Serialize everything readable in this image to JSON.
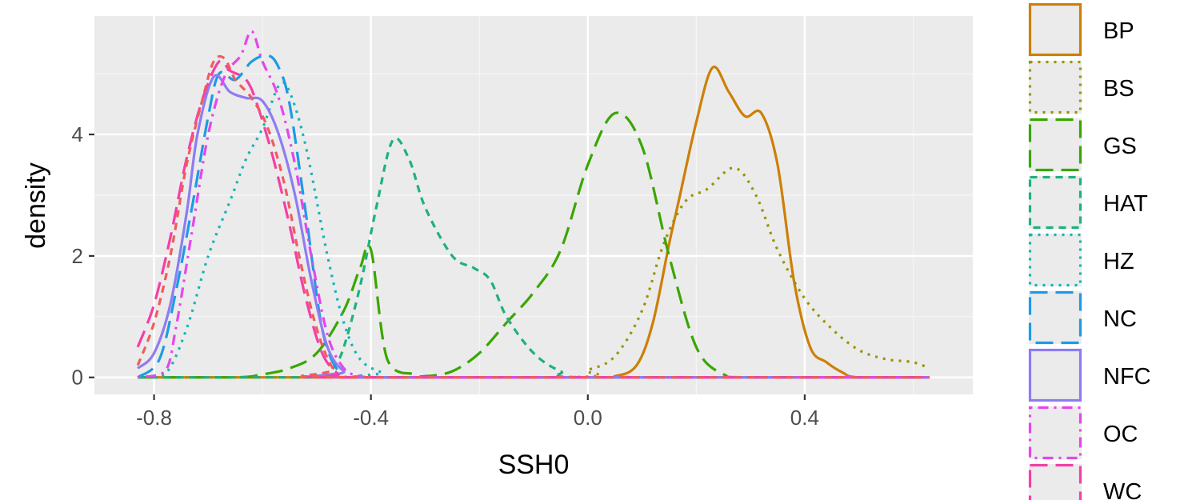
{
  "chart_data": {
    "type": "line",
    "chart_kind": "density",
    "title": "",
    "xlabel": "SSH0",
    "ylabel": "density",
    "xlim": [
      -0.91,
      0.71
    ],
    "ylim": [
      -0.28,
      5.95
    ],
    "x_ticks": [
      -0.8,
      -0.4,
      0.0,
      0.4
    ],
    "x_tick_labels": [
      "-0.8",
      "-0.4",
      "0.0",
      "0.4"
    ],
    "y_ticks": [
      0,
      2,
      4
    ],
    "y_tick_labels": [
      "0",
      "2",
      "4"
    ],
    "grid": true,
    "legend_position": "right",
    "series": [
      {
        "name": "BP",
        "color": "#CD7F06",
        "dash": "solid",
        "points": [
          [
            -0.83,
            0
          ],
          [
            0.0,
            0
          ],
          [
            0.05,
            0.02
          ],
          [
            0.09,
            0.2
          ],
          [
            0.12,
            0.9
          ],
          [
            0.15,
            2.2
          ],
          [
            0.17,
            3.0
          ],
          [
            0.2,
            4.2
          ],
          [
            0.23,
            5.1
          ],
          [
            0.26,
            4.7
          ],
          [
            0.29,
            4.3
          ],
          [
            0.32,
            4.35
          ],
          [
            0.35,
            3.5
          ],
          [
            0.38,
            1.6
          ],
          [
            0.41,
            0.5
          ],
          [
            0.44,
            0.25
          ],
          [
            0.47,
            0.08
          ],
          [
            0.5,
            0
          ],
          [
            0.63,
            0
          ]
        ]
      },
      {
        "name": "BS",
        "color": "#999300",
        "dash": "dotted",
        "points": [
          [
            -0.83,
            0
          ],
          [
            -0.05,
            0
          ],
          [
            0.0,
            0.12
          ],
          [
            0.05,
            0.35
          ],
          [
            0.1,
            1.1
          ],
          [
            0.14,
            2.2
          ],
          [
            0.18,
            2.9
          ],
          [
            0.22,
            3.1
          ],
          [
            0.27,
            3.45
          ],
          [
            0.31,
            3.0
          ],
          [
            0.35,
            2.1
          ],
          [
            0.4,
            1.3
          ],
          [
            0.45,
            0.8
          ],
          [
            0.5,
            0.45
          ],
          [
            0.55,
            0.3
          ],
          [
            0.6,
            0.25
          ],
          [
            0.63,
            0.15
          ]
        ]
      },
      {
        "name": "GS",
        "color": "#3AA600",
        "dash": "longdash",
        "points": [
          [
            -0.83,
            0
          ],
          [
            -0.65,
            0
          ],
          [
            -0.6,
            0.05
          ],
          [
            -0.55,
            0.15
          ],
          [
            -0.5,
            0.4
          ],
          [
            -0.45,
            1.1
          ],
          [
            -0.42,
            1.8
          ],
          [
            -0.4,
            2.1
          ],
          [
            -0.37,
            0.3
          ],
          [
            -0.32,
            0.05
          ],
          [
            -0.3,
            0.02
          ],
          [
            -0.25,
            0.1
          ],
          [
            -0.2,
            0.4
          ],
          [
            -0.15,
            0.9
          ],
          [
            -0.1,
            1.4
          ],
          [
            -0.05,
            2.1
          ],
          [
            0.0,
            3.5
          ],
          [
            0.05,
            4.35
          ],
          [
            0.1,
            3.8
          ],
          [
            0.15,
            2.0
          ],
          [
            0.2,
            0.5
          ],
          [
            0.25,
            0.05
          ],
          [
            0.3,
            0
          ],
          [
            0.63,
            0
          ]
        ]
      },
      {
        "name": "HAT",
        "color": "#1FB17D",
        "dash": "dashed",
        "points": [
          [
            -0.83,
            0
          ],
          [
            -0.5,
            0
          ],
          [
            -0.47,
            0.15
          ],
          [
            -0.45,
            0.5
          ],
          [
            -0.42,
            1.5
          ],
          [
            -0.39,
            2.8
          ],
          [
            -0.36,
            3.9
          ],
          [
            -0.33,
            3.6
          ],
          [
            -0.3,
            2.8
          ],
          [
            -0.25,
            2.0
          ],
          [
            -0.21,
            1.8
          ],
          [
            -0.18,
            1.6
          ],
          [
            -0.15,
            1.0
          ],
          [
            -0.1,
            0.4
          ],
          [
            -0.05,
            0.1
          ],
          [
            0.0,
            0
          ],
          [
            0.63,
            0
          ]
        ]
      },
      {
        "name": "HZ",
        "color": "#12B4B8",
        "dash": "dotted",
        "points": [
          [
            -0.83,
            0
          ],
          [
            -0.78,
            0.05
          ],
          [
            -0.74,
            0.8
          ],
          [
            -0.7,
            2.0
          ],
          [
            -0.66,
            2.9
          ],
          [
            -0.63,
            3.6
          ],
          [
            -0.6,
            4.1
          ],
          [
            -0.57,
            4.8
          ],
          [
            -0.55,
            4.7
          ],
          [
            -0.52,
            3.8
          ],
          [
            -0.48,
            2.0
          ],
          [
            -0.45,
            0.9
          ],
          [
            -0.42,
            0.3
          ],
          [
            -0.38,
            0.08
          ],
          [
            -0.35,
            0
          ],
          [
            0.63,
            0
          ]
        ]
      },
      {
        "name": "NC",
        "color": "#1E9AE6",
        "dash": "longdash",
        "points": [
          [
            -0.83,
            0
          ],
          [
            -0.79,
            0.3
          ],
          [
            -0.76,
            1.4
          ],
          [
            -0.73,
            2.8
          ],
          [
            -0.7,
            4.3
          ],
          [
            -0.68,
            5.0
          ],
          [
            -0.65,
            4.9
          ],
          [
            -0.62,
            5.2
          ],
          [
            -0.59,
            5.3
          ],
          [
            -0.57,
            5.1
          ],
          [
            -0.55,
            4.5
          ],
          [
            -0.52,
            2.7
          ],
          [
            -0.49,
            0.8
          ],
          [
            -0.46,
            0.1
          ],
          [
            -0.43,
            0
          ],
          [
            0.63,
            0
          ]
        ]
      },
      {
        "name": "NFC",
        "color": "#8E7CF2",
        "dash": "solid",
        "points": [
          [
            -0.83,
            0.15
          ],
          [
            -0.8,
            0.4
          ],
          [
            -0.77,
            1.2
          ],
          [
            -0.74,
            2.7
          ],
          [
            -0.72,
            4.0
          ],
          [
            -0.69,
            4.95
          ],
          [
            -0.66,
            4.7
          ],
          [
            -0.63,
            4.6
          ],
          [
            -0.6,
            4.55
          ],
          [
            -0.57,
            4.0
          ],
          [
            -0.54,
            3.0
          ],
          [
            -0.51,
            1.6
          ],
          [
            -0.48,
            0.5
          ],
          [
            -0.45,
            0.1
          ],
          [
            -0.42,
            0
          ],
          [
            0.63,
            0
          ]
        ]
      },
      {
        "name": "OC",
        "color": "#E447EB",
        "dash": "dotdash",
        "points": [
          [
            -0.83,
            0
          ],
          [
            -0.78,
            0.1
          ],
          [
            -0.76,
            0.8
          ],
          [
            -0.73,
            2.4
          ],
          [
            -0.7,
            4.0
          ],
          [
            -0.67,
            4.95
          ],
          [
            -0.64,
            5.3
          ],
          [
            -0.62,
            5.7
          ],
          [
            -0.6,
            5.2
          ],
          [
            -0.57,
            4.6
          ],
          [
            -0.54,
            3.5
          ],
          [
            -0.51,
            2.0
          ],
          [
            -0.48,
            0.7
          ],
          [
            -0.45,
            0.15
          ],
          [
            -0.42,
            0.02
          ],
          [
            -0.4,
            0
          ],
          [
            0.63,
            0
          ]
        ]
      },
      {
        "name": "WC",
        "color": "#F43FA6",
        "dash": "longdash",
        "points": [
          [
            -0.83,
            0.5
          ],
          [
            -0.8,
            1.2
          ],
          [
            -0.77,
            2.3
          ],
          [
            -0.74,
            3.6
          ],
          [
            -0.71,
            4.6
          ],
          [
            -0.68,
            5.2
          ],
          [
            -0.66,
            5.05
          ],
          [
            -0.63,
            4.9
          ],
          [
            -0.61,
            4.5
          ],
          [
            -0.58,
            3.6
          ],
          [
            -0.55,
            2.5
          ],
          [
            -0.52,
            1.3
          ],
          [
            -0.49,
            0.4
          ],
          [
            -0.46,
            0.05
          ],
          [
            -0.44,
            0
          ],
          [
            0.63,
            0
          ]
        ]
      },
      {
        "name": "",
        "color": "#F05C5C",
        "dash": "dashed",
        "points": [
          [
            -0.83,
            0.2
          ],
          [
            -0.8,
            0.9
          ],
          [
            -0.77,
            2.0
          ],
          [
            -0.74,
            3.5
          ],
          [
            -0.71,
            4.6
          ],
          [
            -0.69,
            5.2
          ],
          [
            -0.67,
            5.25
          ],
          [
            -0.65,
            4.9
          ],
          [
            -0.62,
            4.6
          ],
          [
            -0.59,
            4.1
          ],
          [
            -0.56,
            3.2
          ],
          [
            -0.53,
            1.9
          ],
          [
            -0.5,
            0.8
          ],
          [
            -0.47,
            0.15
          ],
          [
            -0.44,
            0
          ],
          [
            0.63,
            0
          ]
        ]
      }
    ]
  }
}
